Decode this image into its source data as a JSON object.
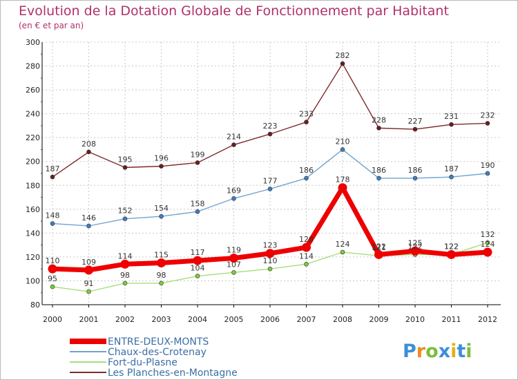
{
  "chart_data": {
    "type": "line",
    "title": "Evolution de la Dotation Globale de Fonctionnement par Habitant",
    "subtitle": "(en € et par an)",
    "xlabel": "",
    "ylabel": "",
    "ylim": [
      80,
      300
    ],
    "yticks": [
      80,
      100,
      120,
      140,
      160,
      180,
      200,
      220,
      240,
      260,
      280,
      300
    ],
    "grid": true,
    "legend_position": "bottom-left",
    "categories": [
      "2000",
      "2001",
      "2002",
      "2003",
      "2004",
      "2005",
      "2006",
      "2007",
      "2008",
      "2009",
      "2010",
      "2011",
      "2012"
    ],
    "series": [
      {
        "name": "Les Planches-en-Montagne",
        "color": "#7f2a2a",
        "dot": "#6a1e1e",
        "values": [
          187,
          208,
          195,
          196,
          199,
          214,
          223,
          233,
          282,
          228,
          227,
          231,
          232
        ],
        "labels": [
          "187",
          "208",
          "195",
          "196",
          "199",
          "214",
          "223",
          "233",
          "282",
          "228",
          "227",
          "231",
          "232"
        ]
      },
      {
        "name": "Chaux-des-Crotenay",
        "color": "#6fa3d0",
        "dot": "#3d7fc0",
        "values": [
          148,
          146,
          152,
          154,
          158,
          169,
          177,
          186,
          210,
          186,
          186,
          187,
          190
        ],
        "labels": [
          "148",
          "146",
          "152",
          "154",
          "158",
          "169",
          "177",
          "186",
          "210",
          "186",
          "186",
          "187",
          "190"
        ]
      },
      {
        "name": "Fort-du-Plasne",
        "color": "#a6dd7c",
        "dot": "#7ccd3c",
        "values": [
          95,
          91,
          98,
          98,
          104,
          107,
          110,
          114,
          124,
          121,
          122,
          122,
          132
        ],
        "labels": [
          "95",
          "91",
          "98",
          "98",
          "104",
          "107",
          "110",
          "114",
          "124",
          "121",
          "122",
          "122",
          "132"
        ]
      },
      {
        "name": "ENTRE-DEUX-MONTS",
        "color": "#ee0000",
        "dot": "#ee0000",
        "values": [
          110,
          109,
          114,
          115,
          117,
          119,
          123,
          128,
          178,
          122,
          125,
          122,
          124
        ],
        "labels": [
          "110",
          "109",
          "114",
          "115",
          "117",
          "119",
          "123",
          "128",
          "178",
          "122",
          "125",
          "122",
          "124"
        ]
      }
    ]
  },
  "legend_items": [
    {
      "label": "ENTRE-DEUX-MONTS",
      "color": "#ee0000"
    },
    {
      "label": "Chaux-des-Crotenay",
      "color": "#6fa3d0"
    },
    {
      "label": "Fort-du-Plasne",
      "color": "#a6dd7c"
    },
    {
      "label": "Les Planches-en-Montagne",
      "color": "#7f2a2a"
    }
  ],
  "branding": {
    "logo_text": "Proxiti",
    "letter_colors": [
      "#3d8fd6",
      "#f08a1e",
      "#7cbf3a",
      "#3d8fd6",
      "#e0b020",
      "#3d8fd6",
      "#7cbf3a"
    ]
  },
  "colors": {
    "title": "#b0306b",
    "axis_text": "#222222",
    "grid": "#c8c8c8",
    "axis": "#000000",
    "tick_red": "#cc2222"
  }
}
